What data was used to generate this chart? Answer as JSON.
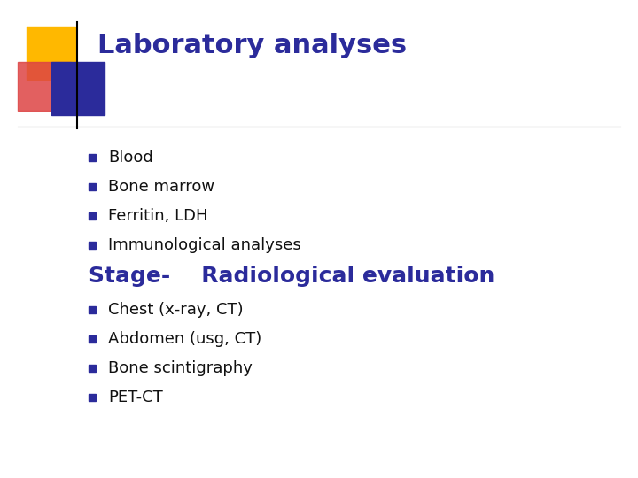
{
  "title": "Laboratory analyses",
  "title_color": "#2B2B9B",
  "title_fontsize": 22,
  "title_fontweight": "bold",
  "bullet_items_top": [
    "Blood",
    "Bone marrow",
    "Ferritin, LDH",
    "Immunological analyses"
  ],
  "bullet_items_bottom": [
    "Chest (x-ray, CT)",
    "Abdomen (usg, CT)",
    "Bone scintigraphy",
    "PET-CT"
  ],
  "bullet_color": "#111111",
  "bullet_fontsize": 13,
  "stage_label": "Stage-    Radiological evaluation",
  "stage_color": "#2B2B9B",
  "stage_fontsize": 18,
  "stage_fontweight": "bold",
  "background_color": "#FFFFFF",
  "dec_yellow_color": "#FFB800",
  "dec_red_color": "#DD4444",
  "dec_blue_color": "#2B2B9B",
  "bullet_square_color": "#2B2B9B",
  "line_color": "#666666"
}
